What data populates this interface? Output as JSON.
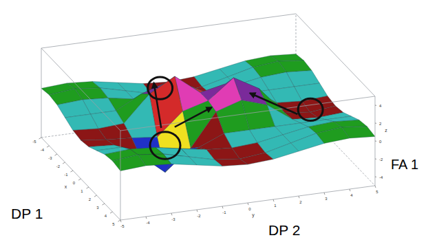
{
  "chart_data": {
    "type": "surface",
    "xlabel": "DP 1",
    "ylabel": "DP 2",
    "zlabel": "FA 1",
    "axis_letters": [
      "x",
      "y",
      "z"
    ],
    "xlim": [
      -5,
      5
    ],
    "ylim": [
      -5,
      5
    ],
    "zlim": [
      -5,
      5
    ],
    "xticks": [
      -5,
      -4,
      -3,
      -2,
      -1,
      0,
      1,
      2,
      3,
      4,
      5
    ],
    "yticks": [
      -5,
      -4,
      -3,
      -2,
      -1,
      0,
      1,
      2,
      3,
      4,
      5
    ],
    "zticks": [
      -4,
      -2,
      0,
      2,
      4
    ],
    "grid": false,
    "x": [
      -5,
      -4,
      -3,
      -2,
      -1,
      0,
      1,
      2,
      3,
      4,
      5
    ],
    "y": [
      -5,
      -4,
      -3,
      -2,
      -1,
      0,
      1,
      2,
      3,
      4,
      5
    ],
    "z": [
      [
        0.5,
        0.7,
        0.5,
        0,
        -0.5,
        -0.7,
        -0.5,
        0,
        0.5,
        0.7,
        0.5
      ],
      [
        0.7,
        1,
        0.7,
        0,
        -0.7,
        -1,
        -0.7,
        0,
        0.7,
        1,
        0.7
      ],
      [
        0.5,
        0.7,
        0.5,
        0,
        -0.5,
        -0.7,
        -0.5,
        0,
        0.5,
        0.7,
        0.5
      ],
      [
        0,
        0,
        0,
        1.5,
        2.4,
        1.5,
        0,
        0,
        0,
        0,
        0
      ],
      [
        -0.5,
        -0.7,
        -0.5,
        2.4,
        4,
        1.8,
        2.4,
        1.5,
        -0.5,
        -0.7,
        -0.5
      ],
      [
        -0.7,
        -1,
        -1.2,
        -1.5,
        1,
        1.8,
        4,
        2.4,
        -0.7,
        -1,
        -0.7
      ],
      [
        -0.5,
        -0.7,
        -2.2,
        -4.5,
        -2.2,
        1.5,
        2.4,
        1.5,
        -0.5,
        -0.7,
        -0.5
      ],
      [
        0,
        0,
        -1.2,
        -2.2,
        -1.2,
        0,
        0,
        0,
        0,
        0,
        0
      ],
      [
        0.5,
        0.7,
        0.5,
        0,
        -0.5,
        -0.7,
        -0.5,
        0,
        0.5,
        0.7,
        0.5
      ],
      [
        0.7,
        1,
        0.7,
        0,
        -0.7,
        -1,
        -0.7,
        0,
        0.7,
        1,
        0.7
      ],
      [
        0.5,
        0.7,
        0.5,
        0,
        -0.5,
        -0.7,
        -0.5,
        0,
        0.5,
        0.7,
        0.5
      ]
    ]
  }
}
